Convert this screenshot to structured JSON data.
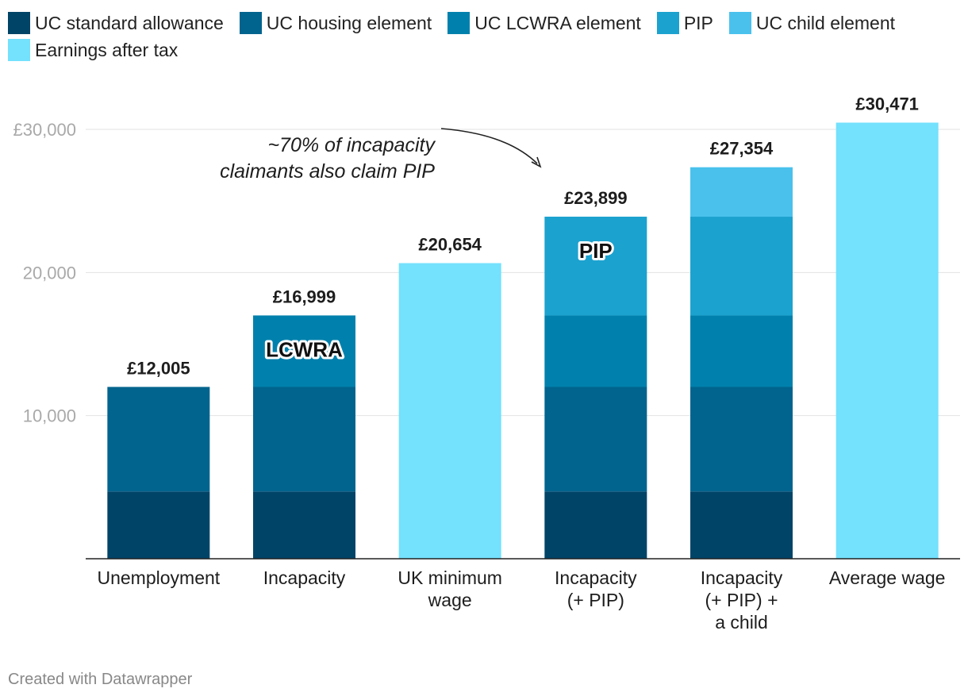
{
  "chart_data": {
    "type": "bar",
    "stacked": true,
    "categories": [
      [
        "Unemployment"
      ],
      [
        "Incapacity"
      ],
      [
        "UK minimum",
        "wage"
      ],
      [
        "Incapacity",
        "(+ PIP)"
      ],
      [
        "Incapacity",
        "(+ PIP) +",
        "a child"
      ],
      [
        "Average wage"
      ]
    ],
    "series": [
      {
        "name": "UC standard allowance",
        "color": "#004468",
        "values": [
          4700,
          4700,
          0,
          4700,
          4700,
          0
        ]
      },
      {
        "name": "UC housing element",
        "color": "#00648e",
        "values": [
          7305,
          7305,
          0,
          7305,
          7305,
          0
        ]
      },
      {
        "name": "UC LCWRA element",
        "color": "#0081ad",
        "values": [
          0,
          4994,
          0,
          4994,
          4994,
          0
        ]
      },
      {
        "name": "PIP",
        "color": "#1ca2cf",
        "values": [
          0,
          0,
          0,
          6900,
          6900,
          0
        ]
      },
      {
        "name": "UC child element",
        "color": "#4ac1ed",
        "values": [
          0,
          0,
          0,
          0,
          3455,
          0
        ]
      },
      {
        "name": "Earnings after tax",
        "color": "#74e1fd",
        "values": [
          0,
          0,
          20654,
          0,
          0,
          30471
        ]
      }
    ],
    "totals": [
      "£12,005",
      "£16,999",
      "£20,654",
      "£23,899",
      "£27,354",
      "£30,471"
    ],
    "yticks": [
      {
        "value": 10000,
        "label": "10,000"
      },
      {
        "value": 20000,
        "label": "20,000"
      },
      {
        "value": 30000,
        "label": "£30,000"
      }
    ],
    "ylim": [
      0,
      30000
    ],
    "inbar_labels": [
      {
        "text": "LCWRA",
        "category": 1,
        "series": 2
      },
      {
        "text": "PIP",
        "category": 3,
        "series": 3
      }
    ],
    "annotation": {
      "lines": [
        "~70% of incapacity",
        "claimants also claim PIP"
      ]
    },
    "title": "",
    "xlabel": "",
    "ylabel": ""
  },
  "footer": "Created with Datawrapper"
}
